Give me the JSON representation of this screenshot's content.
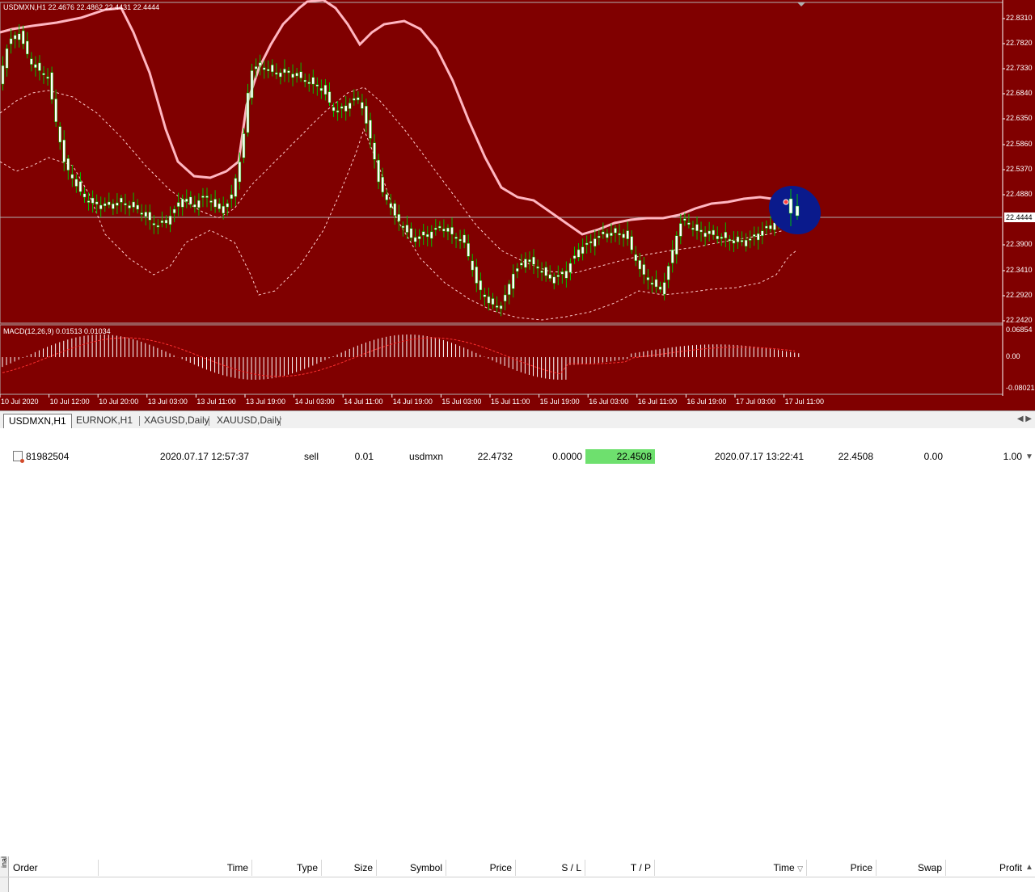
{
  "chart": {
    "symbol_info": "USDMXN,H1  22.4676 22.4862 22.4431 22.4444",
    "macd_info": "MACD(12,26,9) 0.01513 0.01034",
    "current_price": "22.4444",
    "price_axis": [
      "22.8310",
      "22.7820",
      "22.7330",
      "22.6840",
      "22.6350",
      "22.5860",
      "22.5370",
      "22.4880",
      "22.3900",
      "22.3410",
      "22.2920",
      "22.2420"
    ],
    "macd_axis": [
      "0.06854",
      "0.00",
      "-0.08021"
    ],
    "time_axis": [
      "10 Jul 2020",
      "10 Jul 12:00",
      "10 Jul 20:00",
      "13 Jul 03:00",
      "13 Jul 11:00",
      "13 Jul 19:00",
      "14 Jul 03:00",
      "14 Jul 11:00",
      "14 Jul 19:00",
      "15 Jul 03:00",
      "15 Jul 11:00",
      "15 Jul 19:00",
      "16 Jul 03:00",
      "16 Jul 11:00",
      "16 Jul 19:00",
      "17 Jul 03:00",
      "17 Jul 11:00"
    ],
    "colors": {
      "background": "#800000",
      "bull_candle": "#ffffff",
      "bear_candle": "#ffffff",
      "wick": "#00c000",
      "upper_band": "#ffb6c1",
      "dotted_band": "#ffd0d0",
      "macd_signal": "#ff3030",
      "highlight_ellipse": "#0a1a8c"
    }
  },
  "tabs": [
    {
      "label": "USDMXN,H1",
      "active": true
    },
    {
      "label": "EURNOK,H1",
      "active": false
    },
    {
      "label": "XAGUSD,Daily",
      "active": false
    },
    {
      "label": "XAUUSD,Daily",
      "active": false
    }
  ],
  "side_label": "inal",
  "trade_table": {
    "headers": [
      "Order",
      "Time",
      "Type",
      "Size",
      "Symbol",
      "Price",
      "S / L",
      "T / P",
      "Time",
      "Price",
      "Swap",
      "Profit"
    ],
    "row": [
      "81982504",
      "2020.07.17 12:57:37",
      "sell",
      "0.01",
      "usdmxn",
      "22.4732",
      "0.0000",
      "22.4508",
      "2020.07.17 13:22:41",
      "22.4508",
      "0.00",
      "1.00"
    ]
  }
}
